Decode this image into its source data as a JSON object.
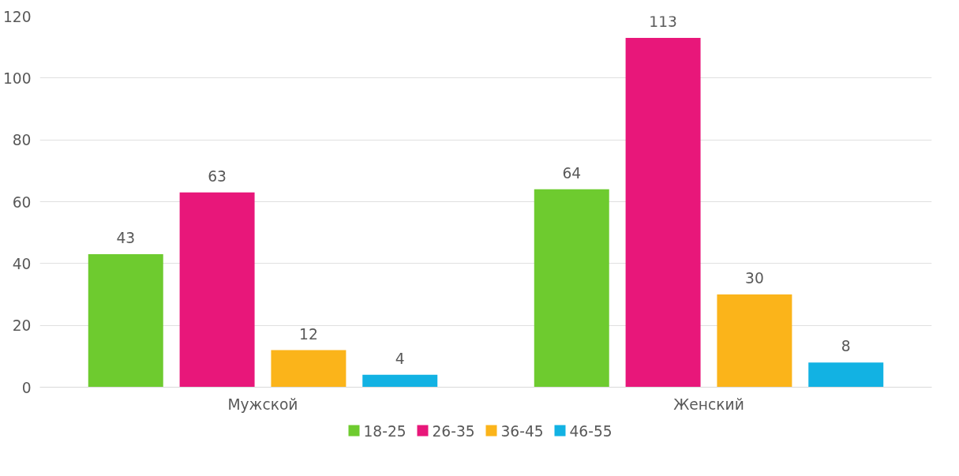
{
  "chart_data": {
    "type": "bar",
    "categories": [
      "Мужской",
      "Женский"
    ],
    "series": [
      {
        "name": "18-25",
        "color": "#6ecb2f",
        "values": [
          43,
          64
        ]
      },
      {
        "name": "26-35",
        "color": "#e8177a",
        "values": [
          63,
          113
        ]
      },
      {
        "name": "36-45",
        "color": "#fbb41a",
        "values": [
          12,
          30
        ]
      },
      {
        "name": "46-55",
        "color": "#12b2e3",
        "values": [
          4,
          8
        ]
      }
    ],
    "ylim": [
      0,
      120
    ],
    "yticks": [
      0,
      20,
      40,
      60,
      80,
      100,
      120
    ],
    "grid": "y",
    "legend": "bottom",
    "data_labels": true
  }
}
